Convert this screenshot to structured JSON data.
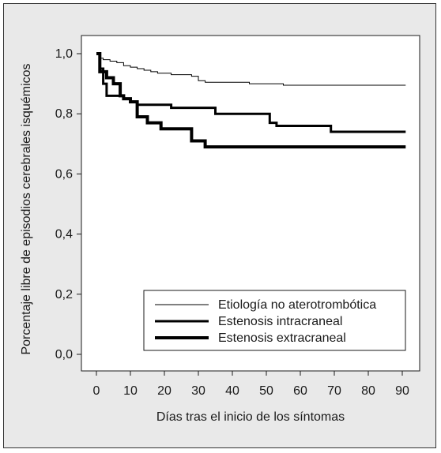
{
  "chart_data": {
    "type": "line",
    "step": true,
    "xlabel": "Días tras el inicio de los síntomas",
    "ylabel": "Porcentaje libre de episodios cerebrales isquémicos",
    "xlim": [
      0,
      90
    ],
    "ylim": [
      0,
      1
    ],
    "xticks": [
      "0",
      "10",
      "20",
      "30",
      "40",
      "50",
      "60",
      "70",
      "80",
      "90"
    ],
    "yticks": [
      "0,0",
      "0,2",
      "0,4",
      "0,6",
      "0,8",
      "1,0"
    ],
    "grid": false,
    "legend_position": "lower-right",
    "series": [
      {
        "name": "Etiología no aterotrombótica",
        "stroke": "#000000",
        "weight": "thin",
        "points": [
          [
            0,
            1.0
          ],
          [
            1,
            0.985
          ],
          [
            2,
            0.98
          ],
          [
            4,
            0.975
          ],
          [
            6,
            0.97
          ],
          [
            8,
            0.96
          ],
          [
            10,
            0.955
          ],
          [
            12,
            0.95
          ],
          [
            14,
            0.945
          ],
          [
            16,
            0.94
          ],
          [
            18,
            0.935
          ],
          [
            22,
            0.93
          ],
          [
            28,
            0.925
          ],
          [
            30,
            0.91
          ],
          [
            32,
            0.905
          ],
          [
            45,
            0.9
          ],
          [
            55,
            0.895
          ],
          [
            91,
            0.895
          ]
        ]
      },
      {
        "name": "Estenosis intracraneal",
        "stroke": "#000000",
        "weight": "medium",
        "points": [
          [
            0,
            1.0
          ],
          [
            1,
            0.95
          ],
          [
            2,
            0.9
          ],
          [
            3,
            0.86
          ],
          [
            8,
            0.85
          ],
          [
            10,
            0.84
          ],
          [
            12,
            0.83
          ],
          [
            14,
            0.83
          ],
          [
            22,
            0.82
          ],
          [
            35,
            0.8
          ],
          [
            51,
            0.77
          ],
          [
            53,
            0.76
          ],
          [
            69,
            0.74
          ],
          [
            91,
            0.74
          ]
        ]
      },
      {
        "name": "Estenosis extracraneal",
        "stroke": "#000000",
        "weight": "thick",
        "points": [
          [
            0,
            1.0
          ],
          [
            1,
            0.94
          ],
          [
            3,
            0.92
          ],
          [
            5,
            0.9
          ],
          [
            7,
            0.86
          ],
          [
            8,
            0.85
          ],
          [
            10,
            0.84
          ],
          [
            12,
            0.79
          ],
          [
            15,
            0.77
          ],
          [
            19,
            0.75
          ],
          [
            28,
            0.71
          ],
          [
            32,
            0.69
          ],
          [
            91,
            0.69
          ]
        ]
      }
    ]
  }
}
